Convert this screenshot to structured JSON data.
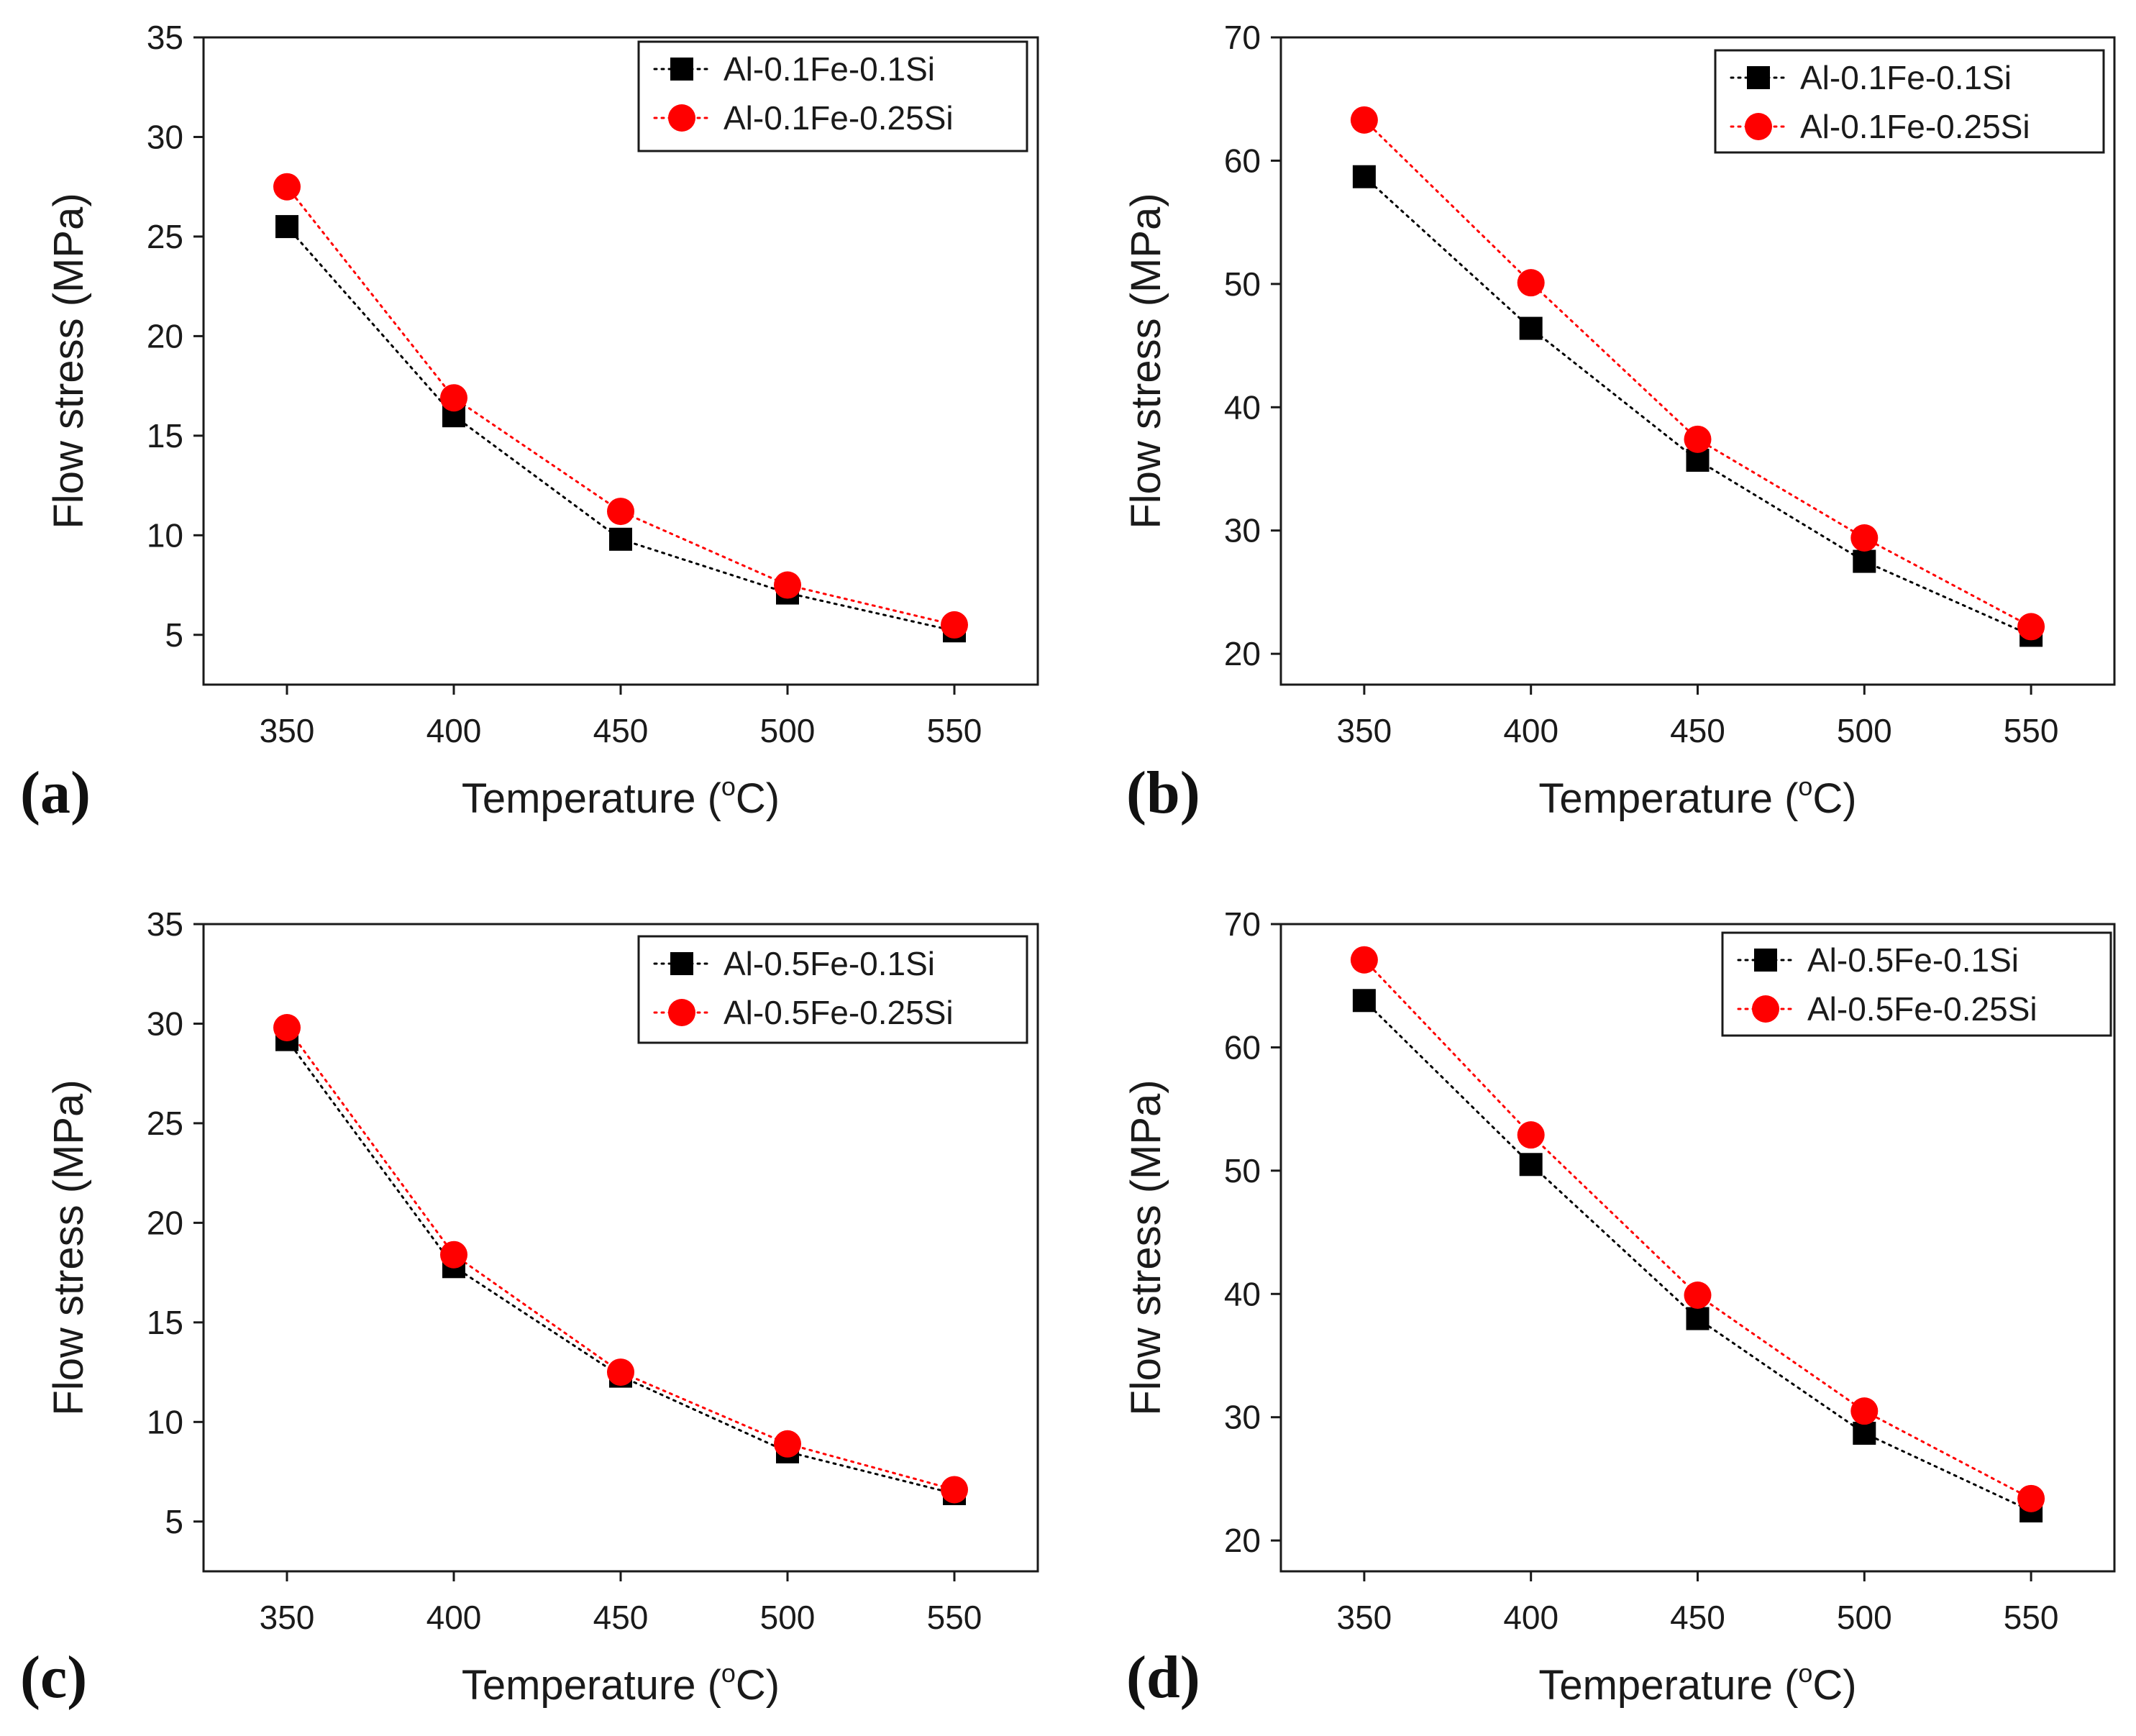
{
  "chart_data": [
    {
      "panel": "(a)",
      "type": "line",
      "x": [
        350,
        400,
        450,
        500,
        550
      ],
      "xlabel": "Temperature",
      "xunit_prefix": "(",
      "xunit_sup": "o",
      "xunit_suffix": "C)",
      "ylabel": "Flow stress (MPa)",
      "xlim": [
        325,
        575
      ],
      "ylim": [
        2.5,
        35
      ],
      "xticks": [
        350,
        400,
        450,
        500,
        550
      ],
      "yticks": [
        5,
        10,
        15,
        20,
        25,
        30,
        35
      ],
      "legend_position": "top-right",
      "series": [
        {
          "name": "Al-0.1Fe-0.1Si",
          "marker": "square",
          "color": "#000000",
          "values": [
            25.5,
            16.0,
            9.8,
            7.1,
            5.2
          ]
        },
        {
          "name": "Al-0.1Fe-0.25Si",
          "marker": "circle",
          "color": "#ff0000",
          "values": [
            27.5,
            16.9,
            11.2,
            7.5,
            5.5
          ]
        }
      ]
    },
    {
      "panel": "(b)",
      "type": "line",
      "x": [
        350,
        400,
        450,
        500,
        550
      ],
      "xlabel": "Temperature",
      "xunit_prefix": "(",
      "xunit_sup": "o",
      "xunit_suffix": "C)",
      "ylabel": "Flow stress (MPa)",
      "xlim": [
        325,
        575
      ],
      "ylim": [
        17.5,
        70
      ],
      "xticks": [
        350,
        400,
        450,
        500,
        550
      ],
      "yticks": [
        20,
        30,
        40,
        50,
        60,
        70
      ],
      "legend_position": "top-right",
      "series": [
        {
          "name": "Al-0.1Fe-0.1Si",
          "marker": "square",
          "color": "#000000",
          "values": [
            58.7,
            46.4,
            35.7,
            27.5,
            21.5
          ]
        },
        {
          "name": "Al-0.1Fe-0.25Si",
          "marker": "circle",
          "color": "#ff0000",
          "values": [
            63.3,
            50.1,
            37.4,
            29.4,
            22.2
          ]
        }
      ]
    },
    {
      "panel": "(c)",
      "type": "line",
      "x": [
        350,
        400,
        450,
        500,
        550
      ],
      "xlabel": "Temperature",
      "xunit_prefix": "(",
      "xunit_sup": "o",
      "xunit_suffix": "C)",
      "ylabel": "Flow stress (MPa)",
      "xlim": [
        325,
        575
      ],
      "ylim": [
        2.5,
        35
      ],
      "xticks": [
        350,
        400,
        450,
        500,
        550
      ],
      "yticks": [
        5,
        10,
        15,
        20,
        25,
        30,
        35
      ],
      "legend_position": "top-right",
      "series": [
        {
          "name": "Al-0.5Fe-0.1Si",
          "marker": "square",
          "color": "#000000",
          "values": [
            29.2,
            17.8,
            12.3,
            8.5,
            6.4
          ]
        },
        {
          "name": "Al-0.5Fe-0.25Si",
          "marker": "circle",
          "color": "#ff0000",
          "values": [
            29.8,
            18.4,
            12.5,
            8.9,
            6.6
          ]
        }
      ]
    },
    {
      "panel": "(d)",
      "type": "line",
      "x": [
        350,
        400,
        450,
        500,
        550
      ],
      "xlabel": "Temperature",
      "xunit_prefix": "(",
      "xunit_sup": "o",
      "xunit_suffix": "C)",
      "ylabel": "Flow stress (MPa)",
      "xlim": [
        325,
        575
      ],
      "ylim": [
        17.5,
        70
      ],
      "xticks": [
        350,
        400,
        450,
        500,
        550
      ],
      "yticks": [
        20,
        30,
        40,
        50,
        60,
        70
      ],
      "legend_position": "top-right",
      "series": [
        {
          "name": "Al-0.5Fe-0.1Si",
          "marker": "square",
          "color": "#000000",
          "values": [
            63.8,
            50.5,
            38.0,
            28.7,
            22.4
          ]
        },
        {
          "name": "Al-0.5Fe-0.25Si",
          "marker": "circle",
          "color": "#ff0000",
          "values": [
            67.1,
            52.9,
            39.9,
            30.5,
            23.4
          ]
        }
      ]
    }
  ]
}
